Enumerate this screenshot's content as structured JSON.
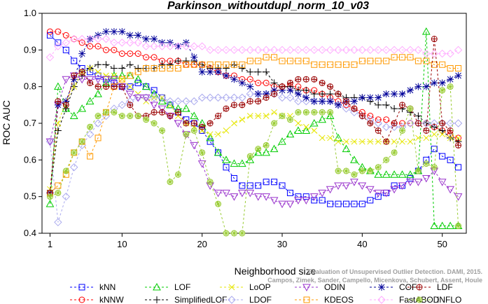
{
  "chart_data": {
    "type": "line",
    "title": "Parkinson_withoutdupl_norm_10_v03",
    "xlabel": "Neighborhood size",
    "ylabel": "ROC AUC",
    "xlim": [
      0,
      53
    ],
    "ylim": [
      0.4,
      1.0
    ],
    "xticks": [
      1,
      10,
      20,
      30,
      40,
      50
    ],
    "yticks": [
      0.4,
      0.5,
      0.6,
      0.7,
      0.8,
      0.9,
      1.0
    ],
    "grid": false,
    "legend_position": "bottom",
    "watermark": [
      "Evaluation of Unsupervised Outlier Detection. DAMI, 2015.",
      "Campos, Zimek, Sander, Campello, Micenkova, Schubert, Assent, Houle"
    ],
    "series": [
      {
        "name": "kNN",
        "color": "#0000ff",
        "marker": "square",
        "values": [
          0.94,
          0.92,
          0.9,
          0.87,
          0.85,
          0.84,
          0.83,
          0.82,
          0.81,
          0.8,
          0.8,
          0.81,
          0.8,
          0.79,
          0.77,
          0.75,
          0.73,
          0.71,
          0.7,
          0.68,
          0.65,
          0.62,
          0.58,
          0.55,
          0.53,
          0.53,
          0.53,
          0.54,
          0.54,
          0.53,
          0.51,
          0.5,
          0.5,
          0.49,
          0.49,
          0.48,
          0.48,
          0.48,
          0.48,
          0.48,
          0.49,
          0.5,
          0.51,
          0.53,
          0.53,
          0.55,
          0.57,
          0.6,
          0.63,
          0.61,
          0.6,
          0.58
        ]
      },
      {
        "name": "kNNW",
        "color": "#ff0000",
        "marker": "circle",
        "values": [
          0.95,
          0.95,
          0.94,
          0.93,
          0.92,
          0.91,
          0.91,
          0.9,
          0.9,
          0.89,
          0.89,
          0.89,
          0.88,
          0.88,
          0.87,
          0.87,
          0.87,
          0.86,
          0.86,
          0.86,
          0.85,
          0.84,
          0.83,
          0.83,
          0.82,
          0.82,
          0.81,
          0.81,
          0.8,
          0.8,
          0.8,
          0.8,
          0.79,
          0.79,
          0.78,
          0.77,
          0.76,
          0.75,
          0.74,
          0.73,
          0.72,
          0.71,
          0.71,
          0.7,
          0.7,
          0.7,
          0.7,
          0.7,
          0.69,
          0.68,
          0.67,
          0.66
        ]
      },
      {
        "name": "LOF",
        "color": "#00cc00",
        "marker": "triangle-up",
        "values": [
          0.48,
          0.8,
          0.74,
          0.72,
          0.74,
          0.76,
          0.78,
          0.81,
          0.83,
          0.83,
          0.83,
          0.82,
          0.8,
          0.78,
          0.76,
          0.75,
          0.74,
          0.74,
          0.72,
          0.7,
          0.66,
          0.62,
          0.6,
          0.59,
          0.59,
          0.6,
          0.62,
          0.62,
          0.63,
          0.65,
          0.67,
          0.68,
          0.68,
          0.7,
          0.71,
          0.72,
          0.66,
          0.63,
          0.6,
          0.58,
          0.57,
          0.56,
          0.56,
          0.56,
          0.56,
          0.56,
          0.57,
          0.95,
          0.42,
          0.42,
          0.42,
          0.42
        ]
      },
      {
        "name": "SimplifiedLOF",
        "color": "#000000",
        "marker": "plus",
        "values": [
          0.51,
          0.68,
          0.74,
          0.8,
          0.83,
          0.85,
          0.86,
          0.86,
          0.85,
          0.85,
          0.86,
          0.85,
          0.85,
          0.85,
          0.86,
          0.86,
          0.87,
          0.87,
          0.87,
          0.86,
          0.85,
          0.85,
          0.85,
          0.86,
          0.85,
          0.84,
          0.84,
          0.84,
          0.81,
          0.8,
          0.8,
          0.79,
          0.79,
          0.78,
          0.78,
          0.78,
          0.78,
          0.77,
          0.77,
          0.77,
          0.76,
          0.75,
          0.75,
          0.74,
          0.74,
          0.73,
          0.72,
          0.7,
          0.69,
          0.68,
          0.66,
          0.65
        ]
      },
      {
        "name": "LoOP",
        "color": "#e6e600",
        "marker": "x",
        "values": [
          0.52,
          0.7,
          0.76,
          0.8,
          0.84,
          0.85,
          0.84,
          0.83,
          0.83,
          0.82,
          0.8,
          0.78,
          0.76,
          0.77,
          0.77,
          0.75,
          0.72,
          0.7,
          0.69,
          0.68,
          0.67,
          0.67,
          0.68,
          0.7,
          0.71,
          0.72,
          0.72,
          0.72,
          0.73,
          0.72,
          0.72,
          0.7,
          0.69,
          0.68,
          0.66,
          0.66,
          0.65,
          0.65,
          0.65,
          0.65,
          0.65,
          0.65,
          0.65,
          0.65,
          0.65,
          0.65,
          0.66,
          0.66,
          0.67,
          0.67,
          0.66,
          0.66
        ]
      },
      {
        "name": "LDOF",
        "color": "#aaaaee",
        "marker": "diamond",
        "values": [
          0.65,
          0.43,
          0.5,
          0.58,
          0.64,
          0.67,
          0.7,
          0.72,
          0.74,
          0.75,
          0.76,
          0.77,
          0.77,
          0.77,
          0.77,
          0.76,
          0.76,
          0.76,
          0.76,
          0.77,
          0.77,
          0.77,
          0.77,
          0.77,
          0.77,
          0.78,
          0.78,
          0.78,
          0.78,
          0.77,
          0.77,
          0.76,
          0.76,
          0.76,
          0.76,
          0.76,
          0.75,
          0.74,
          0.73,
          0.72,
          0.71,
          0.7,
          0.69,
          0.69,
          0.69,
          0.7,
          0.7,
          0.7,
          0.7,
          0.7,
          0.7,
          0.7
        ]
      },
      {
        "name": "ODIN",
        "color": "#9933cc",
        "marker": "triangle-down",
        "values": [
          0.65,
          0.75,
          0.82,
          0.83,
          0.82,
          0.82,
          0.82,
          0.82,
          0.82,
          0.8,
          0.78,
          0.77,
          0.77,
          0.75,
          0.74,
          0.72,
          0.7,
          0.67,
          0.64,
          0.59,
          0.53,
          0.51,
          0.51,
          0.5,
          0.51,
          0.51,
          0.5,
          0.5,
          0.49,
          0.48,
          0.48,
          0.49,
          0.49,
          0.5,
          0.51,
          0.52,
          0.53,
          0.53,
          0.54,
          0.53,
          0.52,
          0.51,
          0.51,
          0.52,
          0.53,
          0.54,
          0.54,
          0.55,
          0.57,
          0.54,
          0.52,
          0.5
        ]
      },
      {
        "name": "KDEOS",
        "color": "#ff9900",
        "marker": "square",
        "values": [
          0.51,
          0.53,
          0.56,
          0.62,
          0.65,
          0.61,
          0.66,
          0.73,
          0.8,
          0.82,
          0.83,
          0.84,
          0.85,
          0.85,
          0.85,
          0.85,
          0.85,
          0.86,
          0.86,
          0.86,
          0.86,
          0.86,
          0.86,
          0.86,
          0.86,
          0.87,
          0.87,
          0.88,
          0.88,
          0.87,
          0.87,
          0.87,
          0.87,
          0.86,
          0.86,
          0.86,
          0.86,
          0.86,
          0.86,
          0.87,
          0.87,
          0.87,
          0.87,
          0.88,
          0.88,
          0.88,
          0.87,
          0.87,
          0.86,
          0.86,
          0.85,
          0.85
        ]
      },
      {
        "name": "COF",
        "color": "#000099",
        "marker": "star",
        "values": [
          0.51,
          0.75,
          0.76,
          0.82,
          0.89,
          0.93,
          0.94,
          0.95,
          0.95,
          0.95,
          0.94,
          0.94,
          0.93,
          0.93,
          0.92,
          0.92,
          0.91,
          0.92,
          0.88,
          0.84,
          0.84,
          0.84,
          0.83,
          0.82,
          0.81,
          0.8,
          0.78,
          0.78,
          0.79,
          0.79,
          0.79,
          0.78,
          0.77,
          0.76,
          0.76,
          0.76,
          0.75,
          0.76,
          0.76,
          0.77,
          0.77,
          0.77,
          0.78,
          0.78,
          0.78,
          0.79,
          0.8,
          0.8,
          0.81,
          0.81,
          0.82,
          0.83
        ]
      },
      {
        "name": "FastABOD",
        "color": "#ffaaff",
        "marker": "diamond",
        "values": [
          0.88,
          0.91,
          0.92,
          0.93,
          0.93,
          0.93,
          0.93,
          0.93,
          0.92,
          0.92,
          0.92,
          0.92,
          0.91,
          0.91,
          0.91,
          0.91,
          0.91,
          0.91,
          0.91,
          0.91,
          0.9,
          0.9,
          0.9,
          0.9,
          0.9,
          0.9,
          0.9,
          0.9,
          0.9,
          0.9,
          0.9,
          0.9,
          0.9,
          0.9,
          0.9,
          0.9,
          0.9,
          0.9,
          0.9,
          0.9,
          0.9,
          0.9,
          0.9,
          0.9,
          0.9,
          0.9,
          0.9,
          0.89,
          0.89,
          0.89,
          0.89,
          0.9
        ]
      },
      {
        "name": "LDF",
        "color": "#990000",
        "marker": "circle-plus",
        "values": [
          0.51,
          0.76,
          0.75,
          0.83,
          0.84,
          0.81,
          0.8,
          0.8,
          0.8,
          0.8,
          0.75,
          0.72,
          0.72,
          0.73,
          0.73,
          0.72,
          0.73,
          0.7,
          0.7,
          0.69,
          0.7,
          0.72,
          0.74,
          0.75,
          0.75,
          0.76,
          0.76,
          0.77,
          0.78,
          0.8,
          0.81,
          0.82,
          0.82,
          0.82,
          0.81,
          0.8,
          0.78,
          0.76,
          0.74,
          0.72,
          0.7,
          0.68,
          0.65,
          0.7,
          0.75,
          0.74,
          0.7,
          0.68,
          0.93,
          0.7,
          0.68,
          0.64
        ]
      },
      {
        "name": "INFLO",
        "color": "#99cc33",
        "marker": "star-circle",
        "values": [
          0.5,
          0.51,
          0.57,
          0.62,
          0.65,
          0.69,
          0.72,
          0.73,
          0.73,
          0.72,
          0.72,
          0.72,
          0.71,
          0.7,
          0.68,
          0.54,
          0.56,
          0.67,
          0.68,
          0.62,
          0.54,
          0.48,
          0.4,
          0.4,
          0.4,
          0.61,
          0.63,
          0.64,
          0.7,
          0.72,
          0.71,
          0.73,
          0.73,
          0.73,
          0.73,
          0.73,
          0.57,
          0.57,
          0.56,
          0.57,
          0.57,
          0.58,
          0.6,
          0.62,
          0.68,
          0.74,
          0.57,
          0.59,
          0.58,
          0.79,
          0.8,
          0.42
        ]
      }
    ]
  }
}
